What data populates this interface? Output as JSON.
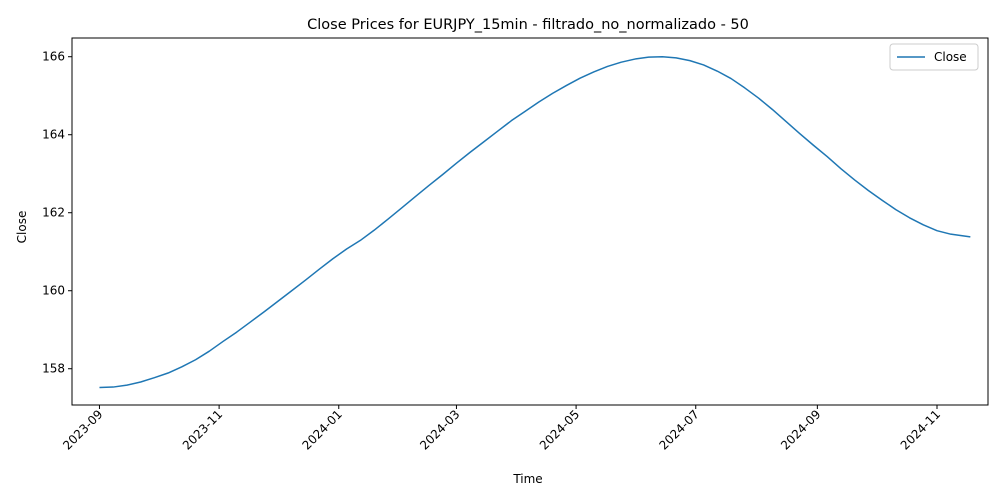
{
  "chart_data": {
    "type": "line",
    "title": "Close Prices for EURJPY_15min - filtrado_no_normalizado - 50",
    "xlabel": "Time",
    "ylabel": "Close",
    "x_range": [
      "2023-08-18",
      "2024-11-27"
    ],
    "ylim": [
      157.07,
      166.48
    ],
    "grid": false,
    "legend_position": "upper right",
    "series_color": "#1f77b4",
    "x_ticks": [
      "2023-09",
      "2023-11",
      "2024-01",
      "2024-03",
      "2024-05",
      "2024-07",
      "2024-09",
      "2024-11"
    ],
    "y_ticks": [
      "158",
      "160",
      "162",
      "164",
      "166"
    ],
    "series": [
      {
        "name": "Close",
        "points": [
          [
            "2023-09-01",
            157.52
          ],
          [
            "2023-09-08",
            157.53
          ],
          [
            "2023-09-15",
            157.58
          ],
          [
            "2023-09-22",
            157.66
          ],
          [
            "2023-09-29",
            157.77
          ],
          [
            "2023-10-06",
            157.89
          ],
          [
            "2023-10-13",
            158.05
          ],
          [
            "2023-10-20",
            158.23
          ],
          [
            "2023-10-27",
            158.45
          ],
          [
            "2023-11-03",
            158.7
          ],
          [
            "2023-11-10",
            158.94
          ],
          [
            "2023-11-17",
            159.2
          ],
          [
            "2023-11-24",
            159.46
          ],
          [
            "2023-12-01",
            159.73
          ],
          [
            "2023-12-08",
            160.0
          ],
          [
            "2023-12-15",
            160.27
          ],
          [
            "2023-12-22",
            160.55
          ],
          [
            "2023-12-29",
            160.82
          ],
          [
            "2024-01-05",
            161.07
          ],
          [
            "2024-01-12",
            161.29
          ],
          [
            "2024-01-19",
            161.55
          ],
          [
            "2024-01-26",
            161.83
          ],
          [
            "2024-02-02",
            162.12
          ],
          [
            "2024-02-09",
            162.41
          ],
          [
            "2024-02-16",
            162.7
          ],
          [
            "2024-02-23",
            162.98
          ],
          [
            "2024-03-01",
            163.27
          ],
          [
            "2024-03-08",
            163.55
          ],
          [
            "2024-03-15",
            163.82
          ],
          [
            "2024-03-22",
            164.09
          ],
          [
            "2024-03-29",
            164.36
          ],
          [
            "2024-04-05",
            164.6
          ],
          [
            "2024-04-12",
            164.84
          ],
          [
            "2024-04-19",
            165.06
          ],
          [
            "2024-04-26",
            165.26
          ],
          [
            "2024-05-03",
            165.45
          ],
          [
            "2024-05-10",
            165.61
          ],
          [
            "2024-05-17",
            165.75
          ],
          [
            "2024-05-24",
            165.86
          ],
          [
            "2024-05-31",
            165.94
          ],
          [
            "2024-06-07",
            165.99
          ],
          [
            "2024-06-14",
            166.0
          ],
          [
            "2024-06-21",
            165.97
          ],
          [
            "2024-06-28",
            165.9
          ],
          [
            "2024-07-05",
            165.79
          ],
          [
            "2024-07-12",
            165.63
          ],
          [
            "2024-07-19",
            165.44
          ],
          [
            "2024-07-26",
            165.2
          ],
          [
            "2024-08-02",
            164.94
          ],
          [
            "2024-08-09",
            164.65
          ],
          [
            "2024-08-16",
            164.34
          ],
          [
            "2024-08-23",
            164.03
          ],
          [
            "2024-08-30",
            163.73
          ],
          [
            "2024-09-06",
            163.44
          ],
          [
            "2024-09-13",
            163.13
          ],
          [
            "2024-09-20",
            162.84
          ],
          [
            "2024-09-27",
            162.57
          ],
          [
            "2024-10-04",
            162.32
          ],
          [
            "2024-10-11",
            162.08
          ],
          [
            "2024-10-18",
            161.87
          ],
          [
            "2024-10-25",
            161.69
          ],
          [
            "2024-11-01",
            161.54
          ],
          [
            "2024-11-08",
            161.45
          ],
          [
            "2024-11-18",
            161.38
          ]
        ]
      }
    ]
  }
}
